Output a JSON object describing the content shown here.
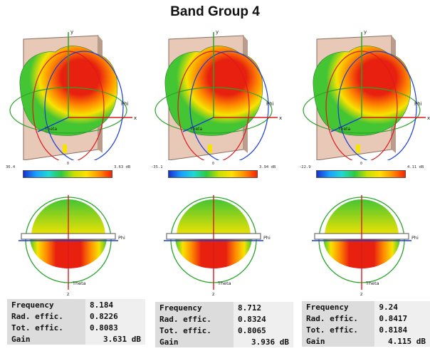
{
  "title": "Band Group 4",
  "colors": {
    "red": "#e8200f",
    "orange": "#ff8800",
    "yellow": "#f7e300",
    "green": "#44c533",
    "board": "#e8c8b6",
    "axis_green": "#2aa32a",
    "axis_blue": "#1a3fcf",
    "ring_red": "#dd1a1a"
  },
  "axis_labels": {
    "y": "y",
    "x": "x",
    "phi": "Phi",
    "theta": "Theta",
    "z": "z"
  },
  "panels": [
    {
      "colorbar": {
        "min": "36.4",
        "mid": "0",
        "max": "3.63 dB"
      },
      "table": [
        {
          "label": "Frequency",
          "value": "8.184"
        },
        {
          "label": "Rad. effic.",
          "value": "0.8226"
        },
        {
          "label": "Tot. effic.",
          "value": "0.8083"
        },
        {
          "label": "Gain",
          "value": "3.631 dB"
        }
      ]
    },
    {
      "colorbar": {
        "min": "-35.1",
        "mid": "0",
        "max": "3.94 dB"
      },
      "table": [
        {
          "label": "Frequency",
          "value": "8.712"
        },
        {
          "label": "Rad. effic.",
          "value": "0.8324"
        },
        {
          "label": "Tot. effic.",
          "value": "0.8065"
        },
        {
          "label": "Gain",
          "value": "3.936 dB"
        }
      ]
    },
    {
      "colorbar": {
        "min": "-22.9",
        "mid": "0",
        "max": "4.11 dB"
      },
      "table": [
        {
          "label": "Frequency",
          "value": "9.24"
        },
        {
          "label": "Rad. effic.",
          "value": "0.8417"
        },
        {
          "label": "Tot. effic.",
          "value": "0.8184"
        },
        {
          "label": "Gain",
          "value": "4.115 dB"
        }
      ]
    }
  ]
}
